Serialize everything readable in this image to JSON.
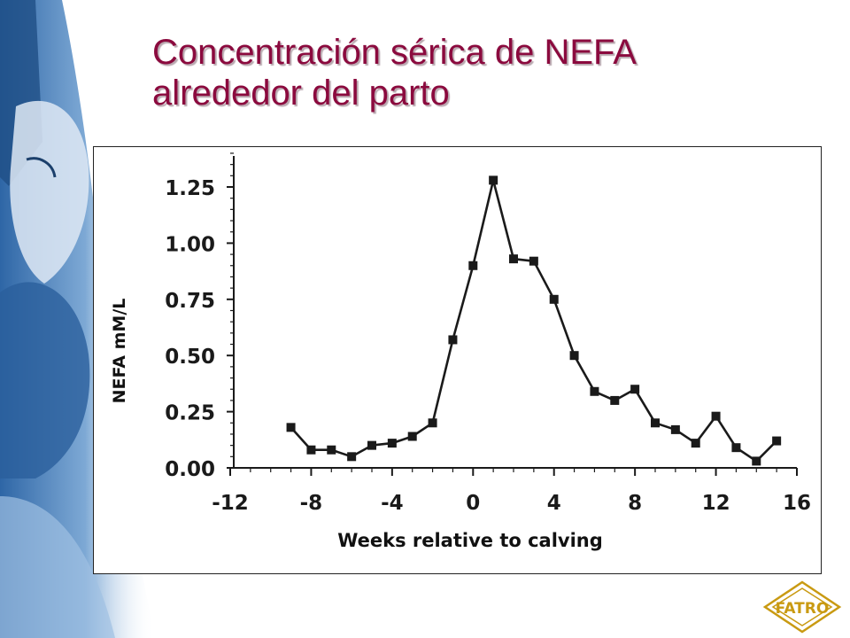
{
  "slide": {
    "title_line1": "Concentración sérica de NEFA",
    "title_line2": "alrededor del parto"
  },
  "colors": {
    "title": "#8b0a3e",
    "series": "#1a1a1a",
    "photo_tint": "#3f79b6"
  },
  "logo": {
    "text": "FATRO"
  },
  "chart_data": {
    "type": "line",
    "xlabel": "Weeks relative to calving",
    "ylabel": "NEFA mM/L",
    "xlim": [
      -12,
      16
    ],
    "ylim": [
      0,
      1.4
    ],
    "x_ticks": [
      -12,
      -8,
      -4,
      0,
      4,
      8,
      12,
      16
    ],
    "x_tick_labels": [
      "-12",
      "-8",
      "-4",
      "0",
      "4",
      "8",
      "12",
      "16"
    ],
    "y_ticks": [
      0,
      0.25,
      0.5,
      0.75,
      1.0,
      1.25
    ],
    "y_tick_labels": [
      "0.00",
      "0.25",
      "0.50",
      "0.75",
      "1.00",
      "1.25"
    ],
    "grid": false,
    "marker": "square",
    "series": [
      {
        "x": [
          -9,
          -8,
          -7,
          -6,
          -5,
          -4,
          -3,
          -2,
          -1,
          0,
          1,
          2,
          3,
          4,
          5,
          6,
          7,
          8,
          9,
          10,
          11,
          12,
          13,
          14,
          15
        ],
        "y": [
          0.18,
          0.08,
          0.08,
          0.05,
          0.1,
          0.11,
          0.14,
          0.2,
          0.57,
          0.9,
          1.28,
          0.93,
          0.92,
          0.75,
          0.5,
          0.34,
          0.3,
          0.35,
          0.2,
          0.17,
          0.11,
          0.23,
          0.09,
          0.03,
          0.12
        ]
      }
    ]
  }
}
